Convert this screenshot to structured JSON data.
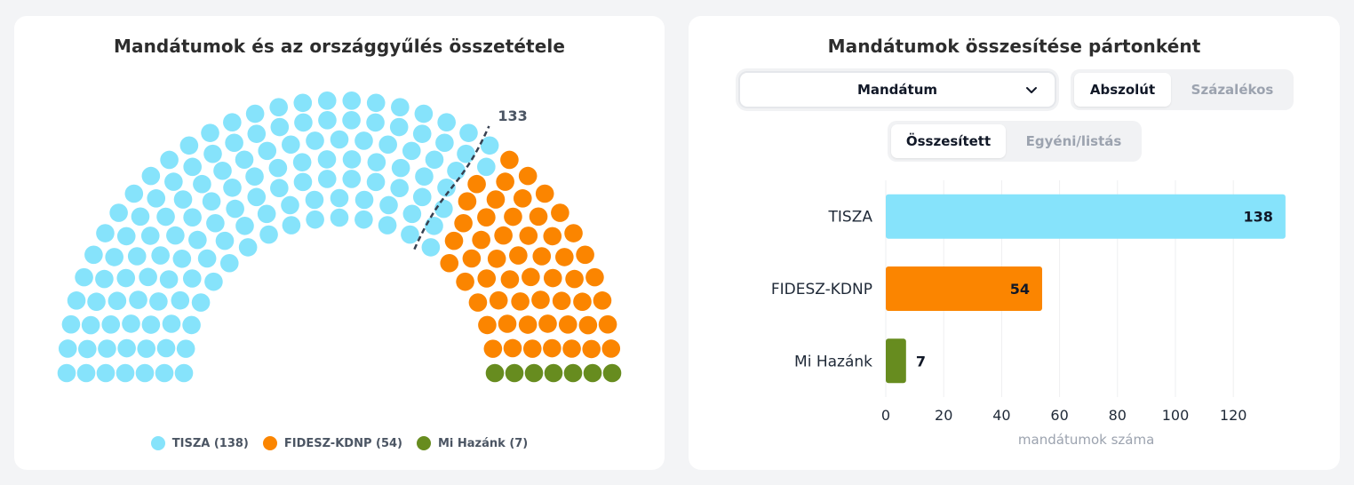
{
  "left": {
    "title": "Mandátumok és az országgyűlés összetétele",
    "majority_label": "133",
    "legend": [
      {
        "label": "TISZA (138)",
        "color": "#86e3fb"
      },
      {
        "label": "FIDESZ-KDNP (54)",
        "color": "#fb8500"
      },
      {
        "label": "Mi Hazánk (7)",
        "color": "#678c1f"
      }
    ]
  },
  "right": {
    "title": "Mandátumok összesítése pártonként",
    "metric_select": {
      "value": "Mandátum"
    },
    "mode_toggle": {
      "options": [
        "Abszolút",
        "Százalékos"
      ],
      "active": 0
    },
    "aggregation_toggle": {
      "options": [
        "Összesített",
        "Egyéni/listás"
      ],
      "active": 0
    }
  },
  "chart_data": [
    {
      "type": "parliament",
      "title": "Mandátumok és az országgyűlés összetétele",
      "total_seats": 199,
      "majority_threshold": 133,
      "parties": [
        {
          "name": "TISZA",
          "seats": 138,
          "color": "#86e3fb"
        },
        {
          "name": "FIDESZ-KDNP",
          "seats": 54,
          "color": "#fb8500"
        },
        {
          "name": "Mi Hazánk",
          "seats": 7,
          "color": "#678c1f"
        }
      ],
      "legend_position": "bottom"
    },
    {
      "type": "bar",
      "orientation": "horizontal",
      "title": "Mandátumok összesítése pártonként",
      "categories": [
        "TISZA",
        "FIDESZ-KDNP",
        "Mi Hazánk"
      ],
      "values": [
        138,
        54,
        7
      ],
      "colors": [
        "#86e3fb",
        "#fb8500",
        "#678c1f"
      ],
      "xlabel": "mandátumok száma",
      "xlim": [
        0,
        138
      ],
      "xticks": [
        0,
        20,
        40,
        60,
        80,
        100,
        120
      ],
      "grid": true
    }
  ]
}
